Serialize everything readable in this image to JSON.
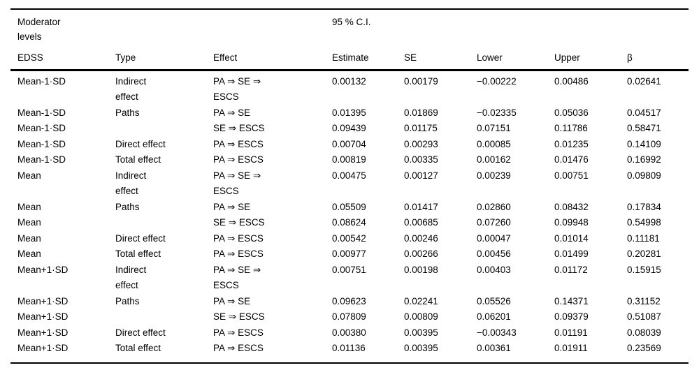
{
  "page": {
    "background_color": "#ffffff",
    "text_color": "#000000",
    "rule_color": "#000000"
  },
  "table": {
    "span_header": {
      "moderator_label": "Moderator\nlevels",
      "ci_label": "95 % C.I."
    },
    "columns": [
      {
        "key": "edss",
        "label": "EDSS"
      },
      {
        "key": "type",
        "label": "Type"
      },
      {
        "key": "effect",
        "label": "Effect"
      },
      {
        "key": "estimate",
        "label": "Estimate"
      },
      {
        "key": "se",
        "label": "SE"
      },
      {
        "key": "lower",
        "label": "Lower"
      },
      {
        "key": "upper",
        "label": "Upper"
      },
      {
        "key": "beta",
        "label": "β"
      }
    ],
    "rows": [
      {
        "edss": "Mean-1·SD",
        "type": "Indirect\neffect",
        "effect": "PA ⇒ SE ⇒\nESCS",
        "estimate": "0.00132",
        "se": "0.00179",
        "lower": "−0.00222",
        "upper": "0.00486",
        "beta": "0.02641"
      },
      {
        "edss": "Mean-1·SD",
        "type": "Paths",
        "effect": "PA ⇒ SE",
        "estimate": "0.01395",
        "se": "0.01869",
        "lower": "−0.02335",
        "upper": "0.05036",
        "beta": "0.04517"
      },
      {
        "edss": "Mean-1·SD",
        "type": "",
        "effect": "SE ⇒ ESCS",
        "estimate": "0.09439",
        "se": "0.01175",
        "lower": "0.07151",
        "upper": "0.11786",
        "beta": "0.58471"
      },
      {
        "edss": "Mean-1·SD",
        "type": "Direct effect",
        "effect": "PA ⇒ ESCS",
        "estimate": "0.00704",
        "se": "0.00293",
        "lower": "0.00085",
        "upper": "0.01235",
        "beta": "0.14109"
      },
      {
        "edss": "Mean-1·SD",
        "type": "Total effect",
        "effect": "PA ⇒ ESCS",
        "estimate": "0.00819",
        "se": "0.00335",
        "lower": "0.00162",
        "upper": "0.01476",
        "beta": "0.16992"
      },
      {
        "edss": "Mean",
        "type": "Indirect\neffect",
        "effect": "PA ⇒ SE ⇒\nESCS",
        "estimate": "0.00475",
        "se": "0.00127",
        "lower": "0.00239",
        "upper": "0.00751",
        "beta": "0.09809"
      },
      {
        "edss": "Mean",
        "type": "Paths",
        "effect": "PA ⇒ SE",
        "estimate": "0.05509",
        "se": "0.01417",
        "lower": "0.02860",
        "upper": "0.08432",
        "beta": "0.17834"
      },
      {
        "edss": "Mean",
        "type": "",
        "effect": "SE ⇒ ESCS",
        "estimate": "0.08624",
        "se": "0.00685",
        "lower": "0.07260",
        "upper": "0.09948",
        "beta": "0.54998"
      },
      {
        "edss": "Mean",
        "type": "Direct effect",
        "effect": "PA ⇒ ESCS",
        "estimate": "0.00542",
        "se": "0.00246",
        "lower": "0.00047",
        "upper": "0.01014",
        "beta": "0.11181"
      },
      {
        "edss": "Mean",
        "type": "Total effect",
        "effect": "PA ⇒ ESCS",
        "estimate": "0.00977",
        "se": "0.00266",
        "lower": "0.00456",
        "upper": "0.01499",
        "beta": "0.20281"
      },
      {
        "edss": "Mean+1·SD",
        "type": "Indirect\neffect",
        "effect": "PA ⇒ SE ⇒\nESCS",
        "estimate": "0.00751",
        "se": "0.00198",
        "lower": "0.00403",
        "upper": "0.01172",
        "beta": "0.15915"
      },
      {
        "edss": "Mean+1·SD",
        "type": "Paths",
        "effect": "PA ⇒ SE",
        "estimate": "0.09623",
        "se": "0.02241",
        "lower": "0.05526",
        "upper": "0.14371",
        "beta": "0.31152"
      },
      {
        "edss": "Mean+1·SD",
        "type": "",
        "effect": "SE ⇒ ESCS",
        "estimate": "0.07809",
        "se": "0.00809",
        "lower": "0.06201",
        "upper": "0.09379",
        "beta": "0.51087"
      },
      {
        "edss": "Mean+1·SD",
        "type": "Direct effect",
        "effect": "PA ⇒ ESCS",
        "estimate": "0.00380",
        "se": "0.00395",
        "lower": "−0.00343",
        "upper": "0.01191",
        "beta": "0.08039"
      },
      {
        "edss": "Mean+1·SD",
        "type": "Total effect",
        "effect": "PA ⇒ ESCS",
        "estimate": "0.01136",
        "se": "0.00395",
        "lower": "0.00361",
        "upper": "0.01911",
        "beta": "0.23569"
      }
    ]
  }
}
